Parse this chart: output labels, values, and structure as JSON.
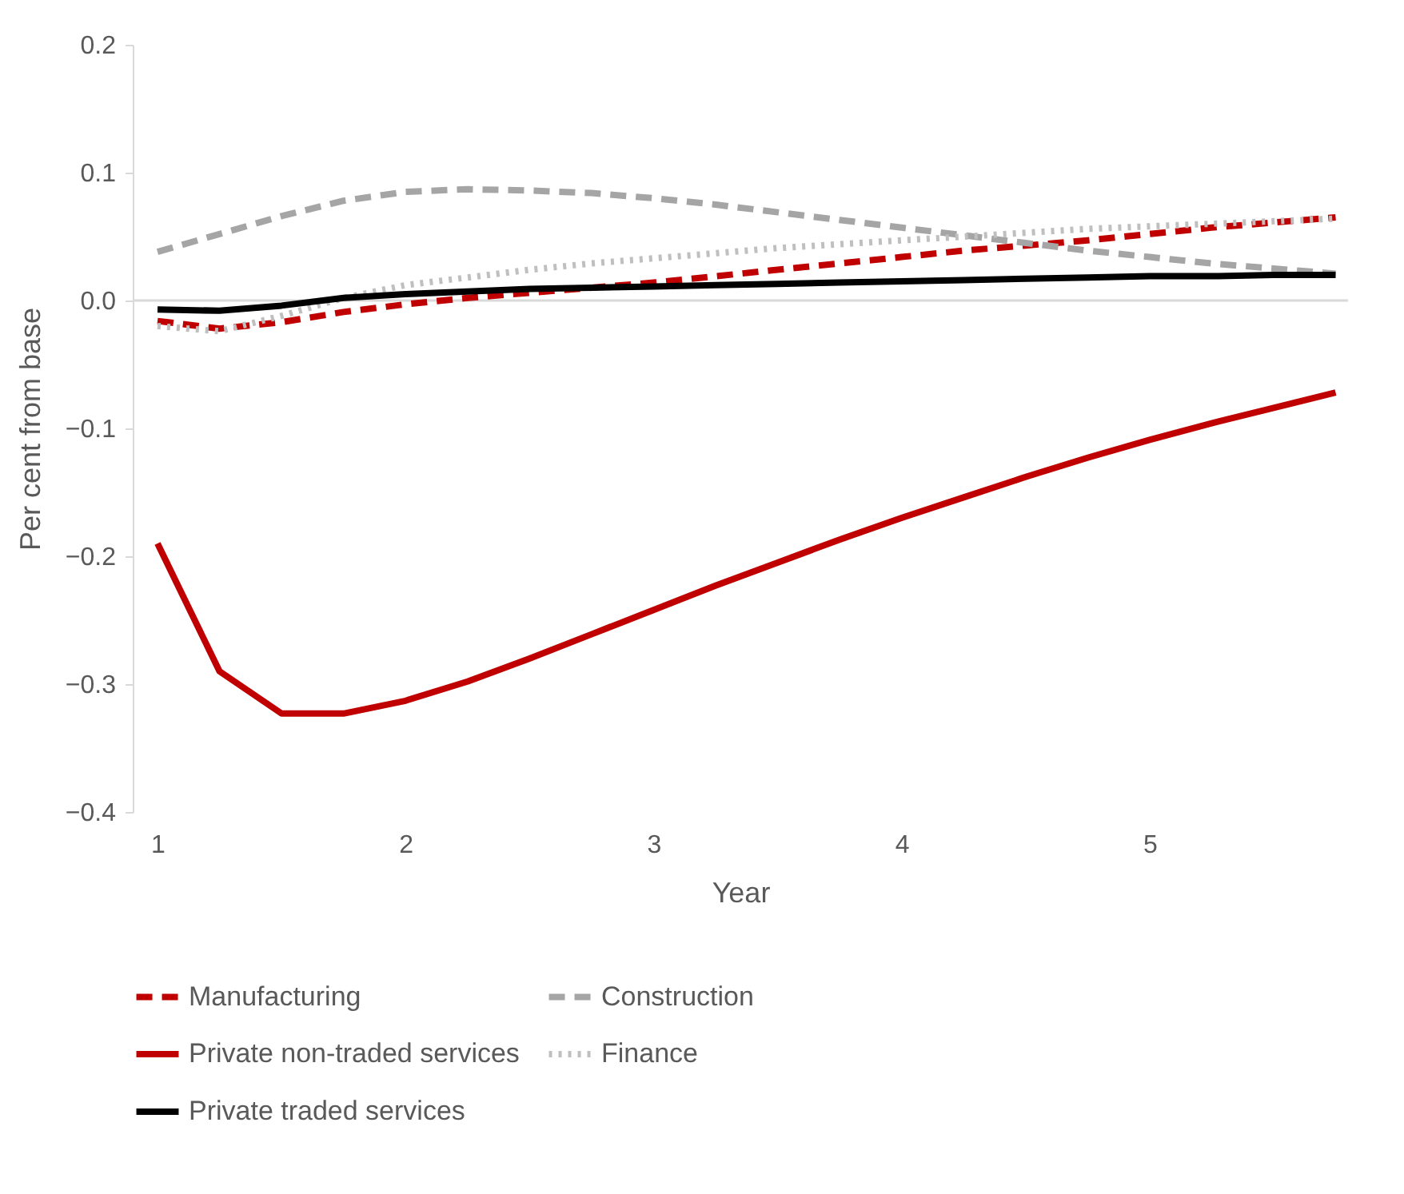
{
  "chart_data": {
    "type": "line",
    "xlabel": "Year",
    "ylabel": "Per cent from base",
    "x": [
      1,
      1.25,
      1.5,
      1.75,
      2,
      2.25,
      2.5,
      2.75,
      3,
      3.25,
      3.5,
      3.75,
      4,
      4.25,
      4.5,
      4.75,
      5,
      5.25,
      5.5,
      5.75
    ],
    "xlim": [
      0.9,
      5.8
    ],
    "xticks": [
      1,
      2,
      3,
      4,
      5
    ],
    "ylim": [
      -0.4,
      0.2
    ],
    "yticks": [
      -0.4,
      -0.3,
      -0.2,
      -0.1,
      {
        "value": 0,
        "label": "0.0"
      },
      0.1,
      0.2
    ],
    "grid": false,
    "legend": "bottom",
    "marker": "none",
    "ref_lines": [
      {
        "axis": "y",
        "value": 0,
        "label": null,
        "color": "#d9d9d9",
        "line_style": "solid"
      }
    ],
    "series": [
      {
        "name": "Manufacturing",
        "color": "#c00000",
        "line_style": "dashed",
        "values": [
          -0.016,
          -0.022,
          -0.017,
          -0.009,
          -0.003,
          0.002,
          0.006,
          0.01,
          0.014,
          0.019,
          0.024,
          0.029,
          0.034,
          0.039,
          0.043,
          0.047,
          0.052,
          0.057,
          0.061,
          0.065
        ]
      },
      {
        "name": "Construction",
        "color": "#a5a5a5",
        "line_style": "dashed",
        "values": [
          0.038,
          0.052,
          0.066,
          0.078,
          0.085,
          0.087,
          0.086,
          0.084,
          0.08,
          0.075,
          0.069,
          0.063,
          0.057,
          0.051,
          0.045,
          0.039,
          0.034,
          0.029,
          0.025,
          0.021
        ]
      },
      {
        "name": "Private non-traded services",
        "color": "#c00000",
        "line_style": "solid",
        "values": [
          -0.19,
          -0.29,
          -0.323,
          -0.323,
          -0.313,
          -0.298,
          -0.28,
          -0.261,
          -0.242,
          -0.223,
          -0.205,
          -0.187,
          -0.17,
          -0.154,
          -0.138,
          -0.123,
          -0.109,
          -0.096,
          -0.084,
          -0.072
        ]
      },
      {
        "name": "Finance",
        "color": "#bfbfbf",
        "line_style": "dotted",
        "values": [
          -0.02,
          -0.024,
          -0.012,
          0.002,
          0.012,
          0.018,
          0.024,
          0.029,
          0.033,
          0.037,
          0.041,
          0.044,
          0.047,
          0.05,
          0.053,
          0.056,
          0.058,
          0.06,
          0.062,
          0.064
        ]
      },
      {
        "name": "Private traded services",
        "color": "#000000",
        "line_style": "solid",
        "values": [
          -0.007,
          -0.008,
          -0.004,
          0.002,
          0.005,
          0.007,
          0.009,
          0.01,
          0.011,
          0.012,
          0.013,
          0.014,
          0.015,
          0.016,
          0.017,
          0.018,
          0.019,
          0.019,
          0.02,
          0.02
        ]
      }
    ]
  }
}
